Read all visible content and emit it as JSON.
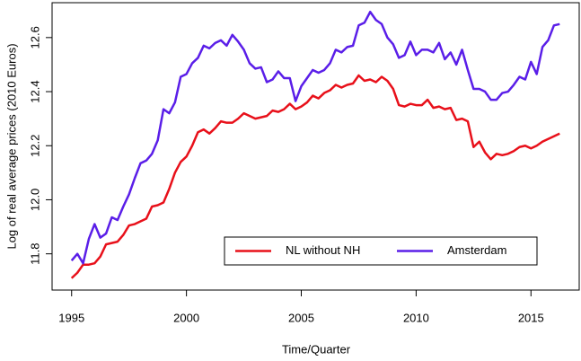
{
  "chart_data": {
    "type": "line",
    "x_label": "Time/Quarter",
    "y_label": "Log of real average prices (2010 Euros)",
    "x": [
      1995,
      1995.25,
      1995.5,
      1995.75,
      1996,
      1996.25,
      1996.5,
      1996.75,
      1997,
      1997.25,
      1997.5,
      1997.75,
      1998,
      1998.25,
      1998.5,
      1998.75,
      1999,
      1999.25,
      1999.5,
      1999.75,
      2000,
      2000.25,
      2000.5,
      2000.75,
      2001,
      2001.25,
      2001.5,
      2001.75,
      2002,
      2002.25,
      2002.5,
      2002.75,
      2003,
      2003.25,
      2003.5,
      2003.75,
      2004,
      2004.25,
      2004.5,
      2004.75,
      2005,
      2005.25,
      2005.5,
      2005.75,
      2006,
      2006.25,
      2006.5,
      2006.75,
      2007,
      2007.25,
      2007.5,
      2007.75,
      2008,
      2008.25,
      2008.5,
      2008.75,
      2009,
      2009.25,
      2009.5,
      2009.75,
      2010,
      2010.25,
      2010.5,
      2010.75,
      2011,
      2011.25,
      2011.5,
      2011.75,
      2012,
      2012.25,
      2012.5,
      2012.75,
      2013,
      2013.25,
      2013.5,
      2013.75,
      2014,
      2014.25,
      2014.5,
      2014.75,
      2015,
      2015.25,
      2015.5,
      2015.75,
      2016,
      2016.25
    ],
    "series": [
      {
        "name": "NL without NH",
        "color": "#e8101a",
        "values": [
          11.71,
          11.73,
          11.76,
          11.76,
          11.765,
          11.79,
          11.835,
          11.84,
          11.845,
          11.87,
          11.905,
          11.91,
          11.92,
          11.93,
          11.975,
          11.98,
          11.99,
          12.04,
          12.1,
          12.14,
          12.16,
          12.2,
          12.25,
          12.26,
          12.245,
          12.265,
          12.29,
          12.285,
          12.285,
          12.3,
          12.32,
          12.31,
          12.3,
          12.305,
          12.31,
          12.33,
          12.325,
          12.335,
          12.355,
          12.335,
          12.345,
          12.36,
          12.385,
          12.375,
          12.395,
          12.405,
          12.425,
          12.415,
          12.425,
          12.43,
          12.46,
          12.44,
          12.445,
          12.435,
          12.455,
          12.44,
          12.41,
          12.35,
          12.345,
          12.355,
          12.35,
          12.35,
          12.37,
          12.34,
          12.345,
          12.335,
          12.34,
          12.295,
          12.3,
          12.29,
          12.195,
          12.215,
          12.175,
          12.15,
          12.17,
          12.165,
          12.17,
          12.18,
          12.195,
          12.2,
          12.19,
          12.2,
          12.215,
          12.225,
          12.235,
          12.245
        ]
      },
      {
        "name": "Amsterdam",
        "color": "#5a1ee8",
        "values": [
          11.775,
          11.8,
          11.765,
          11.855,
          11.91,
          11.86,
          11.875,
          11.935,
          11.925,
          11.975,
          12.02,
          12.08,
          12.135,
          12.145,
          12.17,
          12.22,
          12.335,
          12.32,
          12.36,
          12.455,
          12.465,
          12.505,
          12.525,
          12.57,
          12.56,
          12.58,
          12.59,
          12.57,
          12.61,
          12.585,
          12.555,
          12.505,
          12.485,
          12.49,
          12.435,
          12.445,
          12.475,
          12.45,
          12.45,
          12.365,
          12.42,
          12.45,
          12.48,
          12.47,
          12.48,
          12.505,
          12.555,
          12.545,
          12.565,
          12.57,
          12.645,
          12.655,
          12.695,
          12.665,
          12.65,
          12.6,
          12.575,
          12.525,
          12.535,
          12.585,
          12.535,
          12.555,
          12.555,
          12.545,
          12.58,
          12.52,
          12.545,
          12.5,
          12.555,
          12.48,
          12.41,
          12.41,
          12.4,
          12.37,
          12.37,
          12.395,
          12.4,
          12.425,
          12.455,
          12.445,
          12.51,
          12.465,
          12.565,
          12.59,
          12.645,
          12.65
        ]
      }
    ],
    "xlim": [
      1994.15,
      2017.1
    ],
    "xticks": [
      1995,
      2000,
      2005,
      2010,
      2015
    ],
    "ylim": [
      11.666,
      12.729
    ],
    "yticks": [
      11.8,
      {
        "value": 12,
        "label": "12.0"
      },
      12.2,
      12.4,
      12.6
    ],
    "legend": "bottom"
  }
}
